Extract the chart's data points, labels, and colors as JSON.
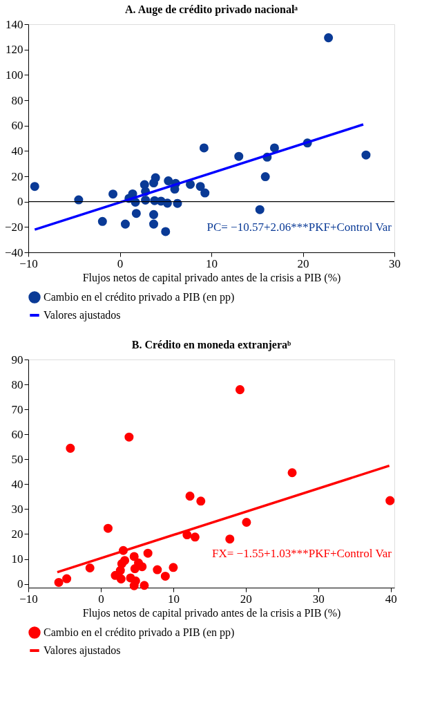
{
  "chart_data": [
    {
      "type": "scatter",
      "title": "A. Auge de crédito privado nacionalᵃ",
      "xlabel": "Flujos netos de capital privado antes de la crisis a PIB (%)",
      "xlim": [
        -10,
        30
      ],
      "xticks": [
        -10,
        0,
        10,
        20,
        30
      ],
      "ylim": [
        -40,
        140
      ],
      "yticks": [
        -40,
        -20,
        0,
        20,
        40,
        60,
        80,
        100,
        120,
        140
      ],
      "grid": false,
      "legend": "bottom",
      "ref_lines": [
        {
          "axis": "y",
          "value": 0,
          "color": "#000000"
        }
      ],
      "annotations": [
        "PC= −10.57+2.06***PKF+Control Var"
      ],
      "series": [
        {
          "name": "Cambio en el crédito privado a PIB (en pp)",
          "marker": "circle",
          "color": "#0a3a96",
          "x": [
            -9.3,
            -4.5,
            -0.75,
            -1.9,
            0.6,
            1.4,
            1.0,
            1.7,
            1.8,
            2.7,
            2.8,
            2.8,
            3.7,
            3.9,
            3.8,
            4.5,
            5.2,
            3.7,
            3.7,
            5.0,
            5.3,
            6.1,
            6.0,
            6.3,
            7.7,
            8.8,
            9.3,
            9.2,
            13.0,
            15.3,
            15.9,
            16.1,
            16.9,
            20.5,
            22.8,
            26.9
          ],
          "values": [
            12,
            1.4,
            6,
            -15.6,
            -17.7,
            6.1,
            2.6,
            -0.4,
            -9.3,
            13.4,
            8.1,
            1.2,
            14.8,
            18.9,
            0.8,
            0.4,
            -1.2,
            -10.2,
            -17.7,
            -23.6,
            16.4,
            14.4,
            9.9,
            -1.4,
            13.6,
            12,
            6.9,
            42.4,
            35.7,
            -6.3,
            19.7,
            35.1,
            42.4,
            46.3,
            129.3,
            36.8
          ]
        },
        {
          "name": "Valores ajustados",
          "type": "line",
          "marker": "none",
          "color": "#0000ff",
          "x": [
            -9.3,
            26.6
          ],
          "values": [
            -22.1,
            60.9
          ]
        }
      ]
    },
    {
      "type": "scatter",
      "title": "B. Crédito en moneda extranjeraᵇ",
      "xlabel": "Flujos netos de capital privado antes de la crisis a PIB (%)",
      "xlim": [
        -10,
        40.5
      ],
      "xticks": [
        -10,
        0,
        10,
        20,
        30,
        40
      ],
      "ylim": [
        -1.5,
        90
      ],
      "yticks": [
        0,
        10,
        20,
        30,
        40,
        50,
        60,
        70,
        80,
        90
      ],
      "grid": false,
      "legend": "bottom",
      "annotations": [
        "FX= −1.55+1.03***PKF+Control Var"
      ],
      "series": [
        {
          "name": "Cambio en el crédito privado a PIB (en pp)",
          "marker": "circle",
          "color": "#ff0000",
          "x": [
            -5.8,
            -4.7,
            -1.5,
            1.0,
            2.0,
            2.8,
            2.7,
            2.9,
            3.3,
            3.1,
            4.6,
            4.1,
            4.8,
            4.6,
            4.7,
            5.2,
            5.7,
            6.0,
            6.5,
            7.8,
            8.9,
            10.0,
            11.9,
            13.0,
            12.3,
            13.8,
            17.8,
            20.1,
            26.4,
            39.9,
            -4.2,
            3.9,
            19.2
          ],
          "values": [
            0.6,
            2.1,
            6.4,
            22.3,
            3.4,
            2.0,
            5.4,
            8.1,
            9.4,
            13.4,
            11.0,
            2.4,
            1.2,
            -0.7,
            6.1,
            8.4,
            6.9,
            -0.6,
            12.3,
            5.7,
            3.1,
            6.6,
            19.7,
            18.8,
            35.2,
            33.2,
            18.0,
            24.7,
            44.6,
            33.4,
            54.4,
            58.9,
            77.9
          ]
        },
        {
          "name": "Valores ajustados",
          "type": "line",
          "marker": "none",
          "color": "#ff0000",
          "x": [
            -6.0,
            39.8
          ],
          "values": [
            4.7,
            47.4
          ]
        }
      ]
    }
  ]
}
